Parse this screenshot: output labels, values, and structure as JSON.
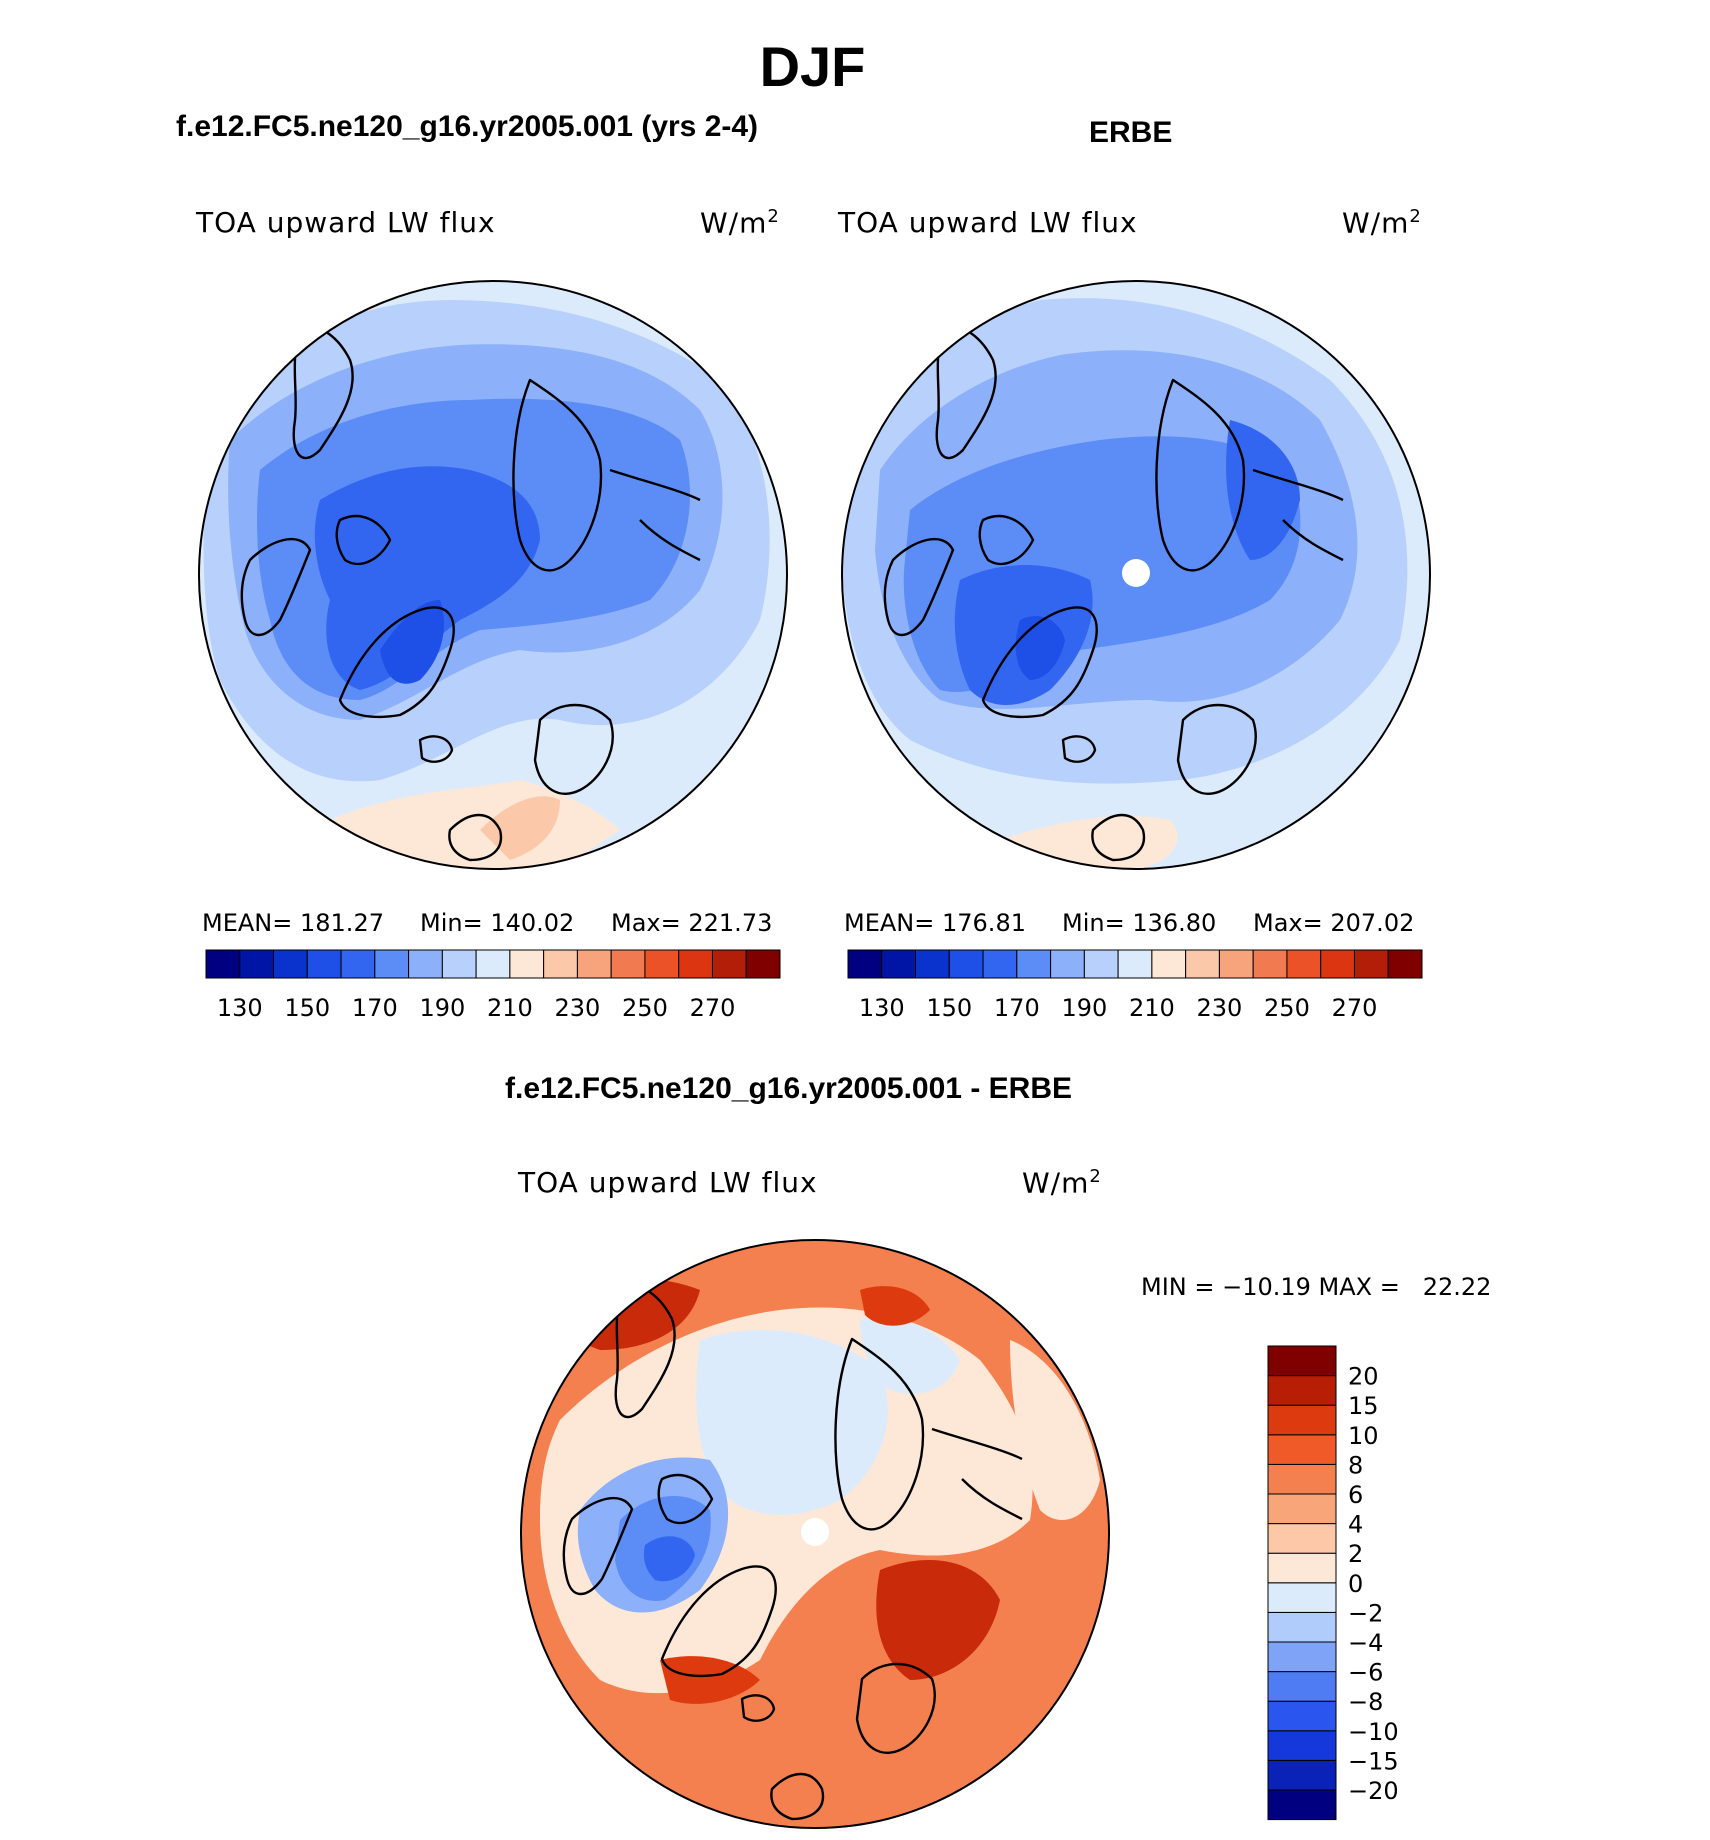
{
  "title": "DJF",
  "panels": [
    {
      "id": "model",
      "title": "f.e12.FC5.ne120_g16.yr2005.001 (yrs 2-4)",
      "variable": "TOA upward LW flux",
      "units_base": "W/m",
      "units_exp": "2",
      "stats": {
        "mean_label": "MEAN=",
        "mean": "181.27",
        "min_label": "Min=",
        "min": "140.02",
        "max_label": "Max=",
        "max": "221.73"
      }
    },
    {
      "id": "obs",
      "title": "ERBE",
      "variable": "TOA upward LW flux",
      "units_base": "W/m",
      "units_exp": "2",
      "stats": {
        "mean_label": "MEAN=",
        "mean": "176.81",
        "min_label": "Min=",
        "min": "136.80",
        "max_label": "Max=",
        "max": "207.02"
      }
    },
    {
      "id": "diff",
      "title": "f.e12.FC5.ne120_g16.yr2005.001 - ERBE",
      "variable": "TOA upward LW flux",
      "units_base": "W/m",
      "units_exp": "2",
      "stats": {
        "minmax": "MIN = −10.19 MAX =   22.22"
      }
    }
  ],
  "abs_colorbar": {
    "colors": [
      "#000080",
      "#0014a6",
      "#0a32cc",
      "#1e4fe6",
      "#3366f0",
      "#5c8cf5",
      "#8cb0fa",
      "#b8d0fc",
      "#dcebfc",
      "#fde8d8",
      "#fbc9aa",
      "#f7a47c",
      "#f27a50",
      "#ec5228",
      "#dc3512",
      "#b31e08",
      "#800000"
    ],
    "tick_labels": [
      "130",
      "150",
      "170",
      "190",
      "210",
      "230",
      "250",
      "270"
    ]
  },
  "diff_colorbar": {
    "colors": [
      "#000080",
      "#0a22b8",
      "#1438dc",
      "#2a55ee",
      "#4f7cf2",
      "#7ea3f7",
      "#b0ccfa",
      "#dcebfc",
      "#fde8d8",
      "#fcc8a8",
      "#f9a57a",
      "#f5804f",
      "#f05a28",
      "#dd3a10",
      "#b81e06",
      "#800000"
    ],
    "tick_labels": [
      "20",
      "15",
      "10",
      "8",
      "6",
      "4",
      "2",
      "0",
      "−2",
      "−4",
      "−6",
      "−8",
      "−10",
      "−15",
      "−20"
    ]
  },
  "map_colors": {
    "ocean_light": "#dcebfc",
    "blue_1": "#b8d0fc",
    "blue_2": "#8cb0fa",
    "blue_3": "#5c8cf5",
    "blue_4": "#3366f0",
    "blue_5": "#1e4fe6",
    "warm_1": "#fde8d8",
    "warm_2": "#fbc9aa",
    "diff_red": "#f05a28",
    "diff_red_dark": "#c82a0a",
    "diff_pale": "#fde8d8",
    "diff_blue": "#5c8cf5"
  }
}
